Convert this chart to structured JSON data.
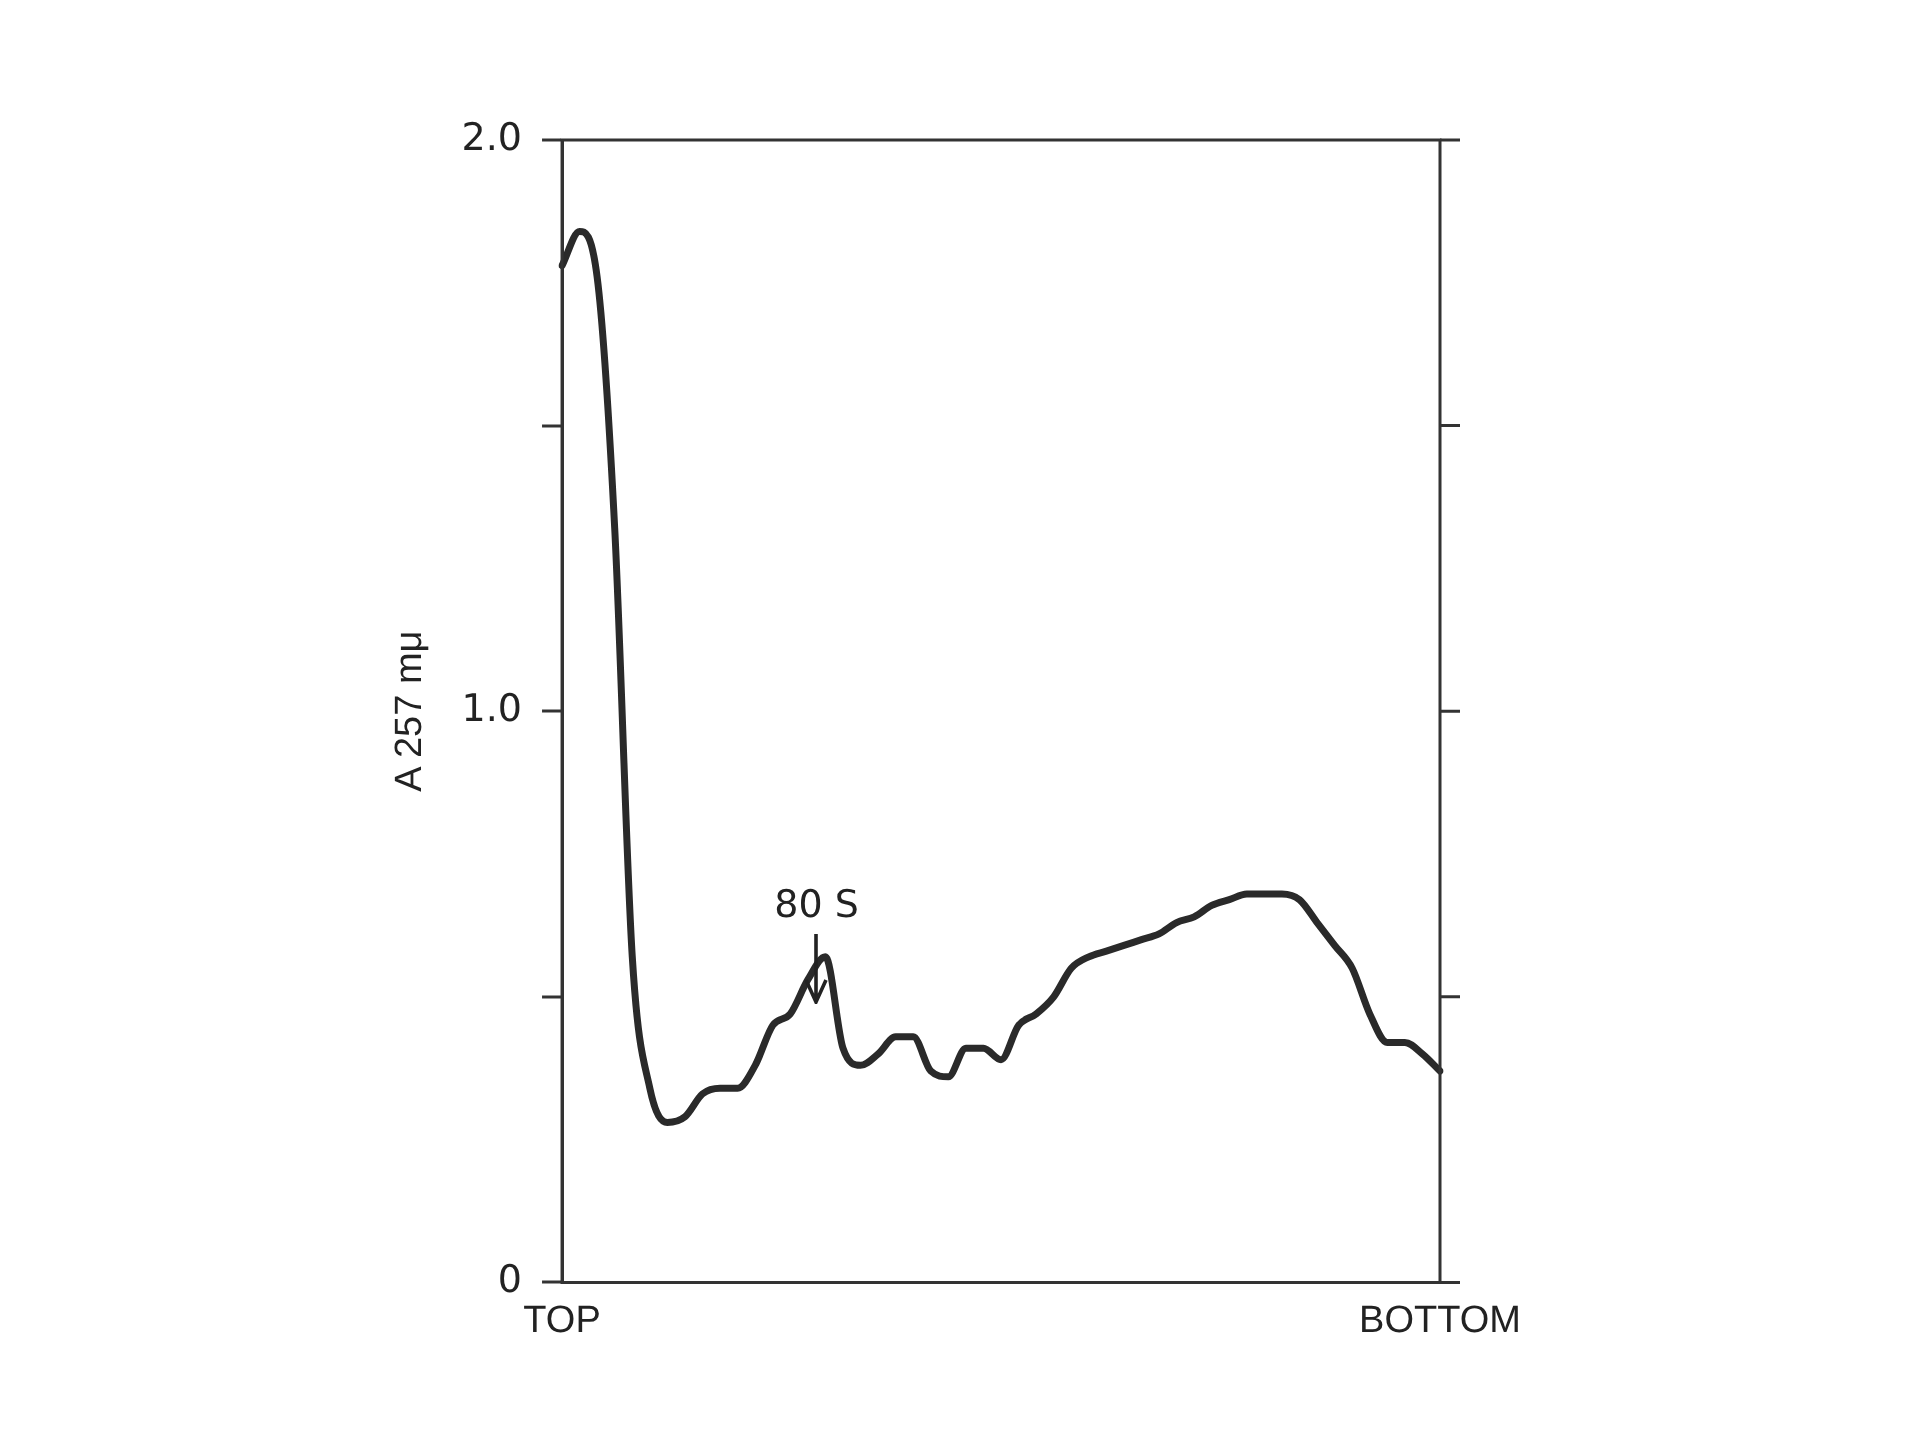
{
  "chart_data": {
    "type": "line",
    "ylabel": "A 257 mμ",
    "categories": [
      "TOP",
      null,
      null,
      null,
      null,
      null,
      null,
      null,
      null,
      null,
      null,
      null,
      null,
      null,
      null,
      null,
      null,
      null,
      null,
      null,
      null,
      null,
      null,
      null,
      null,
      null,
      null,
      null,
      null,
      null,
      null,
      null,
      null,
      null,
      null,
      null,
      null,
      null,
      null,
      null,
      null,
      null,
      null,
      null,
      null,
      null,
      null,
      null,
      null,
      null,
      "BOTTOM"
    ],
    "series": [
      {
        "color": "#2a2a2a",
        "values": [
          1.78,
          1.84,
          1.76,
          1.32,
          0.57,
          0.34,
          0.28,
          0.29,
          0.33,
          0.34,
          0.34,
          0.38,
          0.45,
          0.47,
          0.53,
          0.57,
          0.41,
          0.38,
          0.4,
          0.43,
          0.43,
          0.37,
          0.36,
          0.41,
          0.41,
          0.39,
          0.45,
          0.47,
          0.5,
          0.55,
          0.57,
          0.58,
          0.59,
          0.6,
          0.61,
          0.63,
          0.64,
          0.66,
          0.67,
          0.68,
          0.68,
          0.68,
          0.67,
          0.63,
          0.59,
          0.55,
          0.47,
          0.42,
          0.42,
          0.4,
          0.37
        ]
      }
    ],
    "ylim": [
      0,
      2.0
    ],
    "yticks": [
      0,
      {
        "value": 0.5,
        "label": null
      },
      {
        "value": 1.0,
        "label": "1.0"
      },
      {
        "value": 1.5,
        "label": null
      },
      {
        "value": 2.0,
        "label": "2.0"
      }
    ],
    "annotations": [
      "80 S"
    ],
    "grid": false,
    "legend": false,
    "marker": "none",
    "line_style": "solid"
  }
}
